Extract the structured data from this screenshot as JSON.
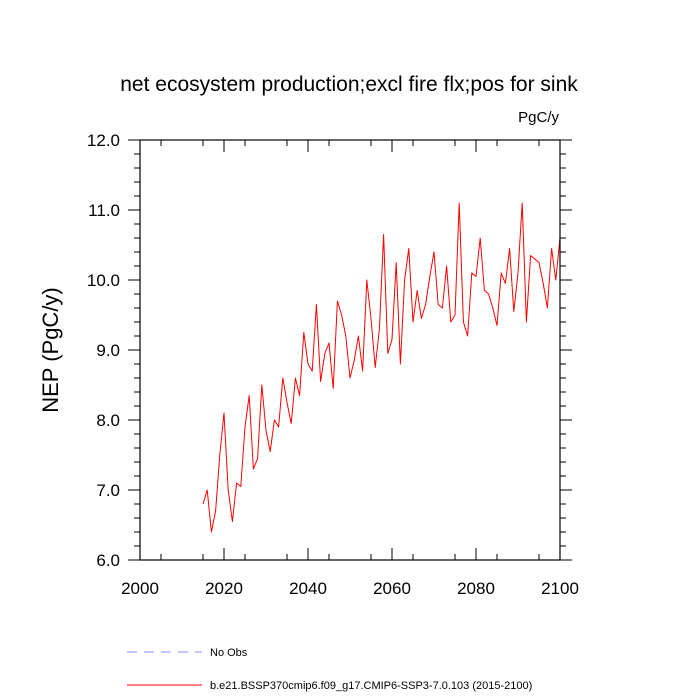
{
  "chart_data": {
    "type": "line",
    "title": "net ecosystem production;excl fire flx;pos for sink",
    "units": "PgC/y",
    "xlabel": "",
    "ylabel": "NEP  (PgC/y)",
    "xlim": [
      2000,
      2100
    ],
    "ylim": [
      6.0,
      12.0
    ],
    "xticks": [
      2000,
      2020,
      2040,
      2060,
      2080,
      2100
    ],
    "xtick_labels": [
      "2000",
      "2020",
      "2040",
      "2060",
      "2080",
      "2100"
    ],
    "yticks": [
      6.0,
      7.0,
      8.0,
      9.0,
      10.0,
      11.0,
      12.0
    ],
    "ytick_labels": [
      "6.0",
      "7.0",
      "8.0",
      "9.0",
      "10.0",
      "11.0",
      "12.0"
    ],
    "series": [
      {
        "name": "b.e21.BSSP370cmip6.f09_g17.CMIP6-SSP3-7.0.103 (2015-2100)",
        "color": "#ff0000",
        "style": "solid",
        "x": [
          2015,
          2016,
          2017,
          2018,
          2019,
          2020,
          2021,
          2022,
          2023,
          2024,
          2025,
          2026,
          2027,
          2028,
          2029,
          2030,
          2031,
          2032,
          2033,
          2034,
          2035,
          2036,
          2037,
          2038,
          2039,
          2040,
          2041,
          2042,
          2043,
          2044,
          2045,
          2046,
          2047,
          2048,
          2049,
          2050,
          2051,
          2052,
          2053,
          2054,
          2055,
          2056,
          2057,
          2058,
          2059,
          2060,
          2061,
          2062,
          2063,
          2064,
          2065,
          2066,
          2067,
          2068,
          2069,
          2070,
          2071,
          2072,
          2073,
          2074,
          2075,
          2076,
          2077,
          2078,
          2079,
          2080,
          2081,
          2082,
          2083,
          2084,
          2085,
          2086,
          2087,
          2088,
          2089,
          2090,
          2091,
          2092,
          2093,
          2094,
          2095,
          2096,
          2097,
          2098,
          2099,
          2100
        ],
        "values": [
          6.8,
          7.0,
          6.4,
          6.7,
          7.5,
          8.1,
          7.0,
          6.55,
          7.1,
          7.05,
          7.9,
          8.35,
          7.3,
          7.45,
          8.5,
          7.85,
          7.55,
          8.0,
          7.9,
          8.6,
          8.25,
          7.95,
          8.6,
          8.35,
          9.25,
          8.8,
          8.7,
          9.65,
          8.55,
          8.95,
          9.1,
          8.45,
          9.7,
          9.5,
          9.2,
          8.6,
          8.85,
          9.2,
          8.7,
          10.0,
          9.45,
          8.75,
          9.3,
          10.65,
          8.95,
          9.15,
          10.25,
          8.8,
          10.0,
          10.45,
          9.4,
          9.85,
          9.45,
          9.65,
          10.05,
          10.4,
          9.65,
          9.6,
          10.2,
          9.4,
          9.5,
          11.1,
          9.4,
          9.2,
          10.1,
          10.05,
          10.6,
          9.85,
          9.8,
          9.6,
          9.35,
          10.1,
          9.95,
          10.45,
          9.55,
          10.1,
          11.1,
          9.4,
          10.35,
          10.3,
          10.25,
          9.95,
          9.6,
          10.45,
          10.0,
          10.6
        ]
      },
      {
        "name": "No Obs",
        "color": "#8a8aff",
        "style": "dashed",
        "x": [],
        "values": []
      }
    ],
    "legend": [
      "No Obs",
      "b.e21.BSSP370cmip6.f09_g17.CMIP6-SSP3-7.0.103 (2015-2100)"
    ],
    "legend_position": "bottom-left",
    "grid": false
  }
}
